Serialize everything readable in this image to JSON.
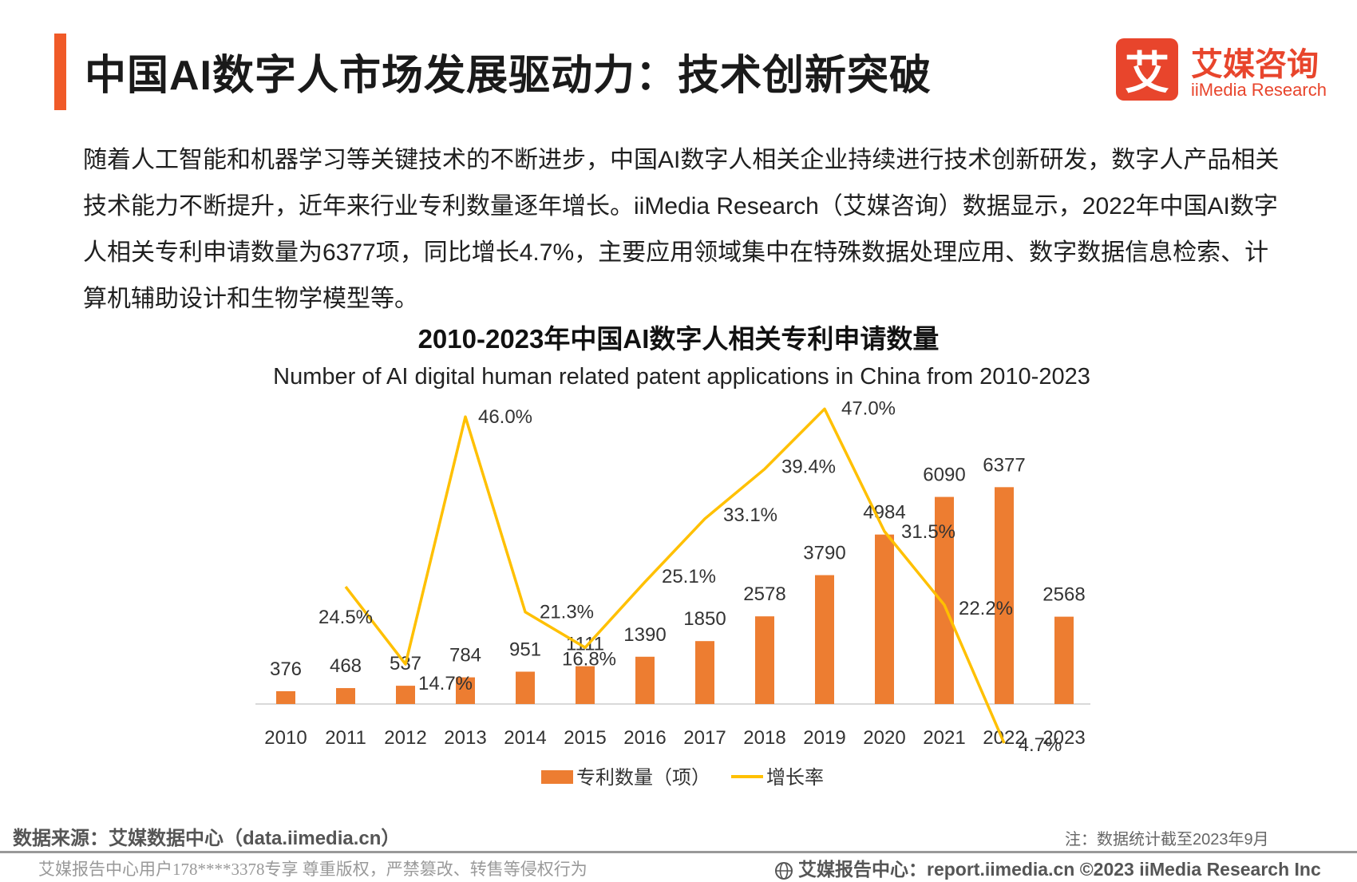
{
  "header": {
    "title": "中国AI数字人市场发展驱动力：技术创新突破",
    "accent_color": "#f05a28",
    "logo": {
      "mark": "艾",
      "name_cn": "艾媒咨询",
      "name_en": "iiMedia Research",
      "color": "#e8452c"
    }
  },
  "intro": "随着人工智能和机器学习等关键技术的不断进步，中国AI数字人相关企业持续进行技术创新研发，数字人产品相关技术能力不断提升，近年来行业专利数量逐年增长。iiMedia Research（艾媒咨询）数据显示，2022年中国AI数字人相关专利申请数量为6377项，同比增长4.7%，主要应用领域集中在特殊数据处理应用、数字数据信息检索、计算机辅助设计和生物学模型等。",
  "chart_data": {
    "type": "bar",
    "title": "2010-2023年中国AI数字人相关专利申请数量",
    "subtitle": "Number of AI digital human related patent applications in China from 2010-2023",
    "categories": [
      "2010",
      "2011",
      "2012",
      "2013",
      "2014",
      "2015",
      "2016",
      "2017",
      "2018",
      "2019",
      "2020",
      "2021",
      "2022",
      "2023"
    ],
    "series": [
      {
        "name": "专利数量（项）",
        "type": "bar",
        "color": "#ed7d31",
        "values": [
          376,
          468,
          537,
          784,
          951,
          1111,
          1390,
          1850,
          2578,
          3790,
          4984,
          6090,
          6377,
          2568
        ],
        "labels": [
          "376",
          "468",
          "537",
          "784",
          "951",
          "1111",
          "1390",
          "1850",
          "2578",
          "3790",
          "4984",
          "6090",
          "6377",
          "2568"
        ]
      },
      {
        "name": "增长率",
        "type": "line",
        "color": "#ffc000",
        "values": [
          null,
          24.5,
          14.7,
          46.0,
          21.3,
          16.8,
          25.1,
          33.1,
          39.4,
          47.0,
          31.5,
          22.2,
          4.7,
          null
        ],
        "labels": [
          "",
          "24.5%",
          "14.7%",
          "46.0%",
          "21.3%",
          "16.8%",
          "25.1%",
          "33.1%",
          "39.4%",
          "47.0%",
          "31.5%",
          "22.2%",
          "4.7%",
          ""
        ]
      }
    ],
    "legend": "bottom-center",
    "grid": false
  },
  "footer": {
    "source": "数据来源：艾媒数据中心（data.iimedia.cn）",
    "note": "注：数据统计截至2023年9月",
    "copyright_left": "艾媒报告中心用户178****3378专享 尊重版权，严禁篡改、转售等侵权行为",
    "copyright_right": "艾媒报告中心：report.iimedia.cn  ©2023  iiMedia Research  Inc"
  }
}
